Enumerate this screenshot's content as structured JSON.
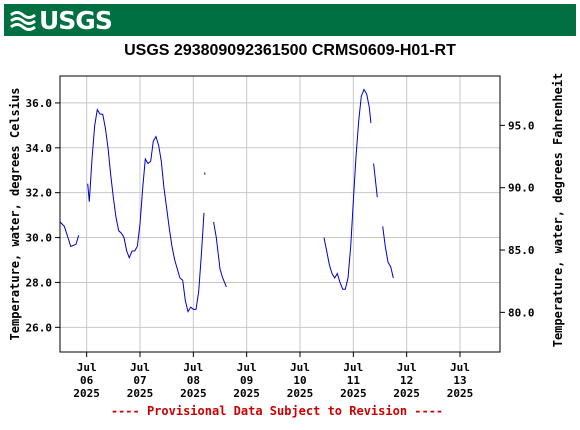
{
  "banner": {
    "logo_text": "USGS",
    "color": "#006f41"
  },
  "title": "USGS 293809092361500 CRMS0609-H01-RT",
  "footer": "---- Provisional Data Subject to Revision ----",
  "colors": {
    "line": "#0000cc",
    "footer": "#cc0000",
    "grid": "#c8c8c8"
  },
  "chart_data": {
    "type": "line",
    "title": "USGS 293809092361500 CRMS0609-H01-RT",
    "ylabel": "Temperature, water, degrees Celsius",
    "ylabel_right": "Temperature, water, degrees Fahrenheit",
    "xlim": [
      -0.5,
      7.75
    ],
    "ylim": [
      24.9,
      37.2
    ],
    "y_ticks": [
      26.0,
      28.0,
      30.0,
      32.0,
      34.0,
      36.0
    ],
    "y_tick_labels": [
      "26.0",
      "28.0",
      "30.0",
      "32.0",
      "34.0",
      "36.0"
    ],
    "y2_ticks": [
      80.0,
      85.0,
      90.0,
      95.0
    ],
    "y2_tick_labels": [
      "80.0",
      "85.0",
      "90.0",
      "95.0"
    ],
    "x_ticks": [
      0,
      1,
      2,
      3,
      4,
      5,
      6,
      7
    ],
    "x_tick_labels": [
      [
        "Jul",
        "06",
        "2025"
      ],
      [
        "Jul",
        "07",
        "2025"
      ],
      [
        "Jul",
        "08",
        "2025"
      ],
      [
        "Jul",
        "09",
        "2025"
      ],
      [
        "Jul",
        "10",
        "2025"
      ],
      [
        "Jul",
        "11",
        "2025"
      ],
      [
        "Jul",
        "12",
        "2025"
      ],
      [
        "Jul",
        "13",
        "2025"
      ]
    ],
    "grid": true,
    "series_segments": [
      [
        [
          -0.5,
          30.7
        ],
        [
          -0.42,
          30.5
        ],
        [
          -0.35,
          30.0
        ],
        [
          -0.3,
          29.6
        ],
        [
          -0.2,
          29.7
        ],
        [
          -0.15,
          30.1
        ]
      ],
      [
        [
          0.02,
          32.4
        ],
        [
          0.05,
          31.6
        ],
        [
          0.1,
          33.5
        ],
        [
          0.15,
          35.0
        ],
        [
          0.2,
          35.7
        ],
        [
          0.25,
          35.5
        ],
        [
          0.3,
          35.5
        ],
        [
          0.35,
          34.9
        ],
        [
          0.4,
          34.0
        ],
        [
          0.45,
          32.8
        ],
        [
          0.5,
          31.8
        ],
        [
          0.55,
          30.9
        ],
        [
          0.6,
          30.3
        ],
        [
          0.65,
          30.2
        ],
        [
          0.7,
          30.0
        ],
        [
          0.75,
          29.4
        ],
        [
          0.8,
          29.1
        ],
        [
          0.85,
          29.4
        ],
        [
          0.9,
          29.4
        ],
        [
          0.95,
          29.6
        ],
        [
          1.0,
          30.6
        ],
        [
          1.05,
          32.2
        ],
        [
          1.1,
          33.5
        ],
        [
          1.15,
          33.3
        ],
        [
          1.2,
          33.4
        ],
        [
          1.25,
          34.3
        ],
        [
          1.3,
          34.5
        ],
        [
          1.35,
          34.1
        ],
        [
          1.4,
          33.4
        ],
        [
          1.45,
          32.2
        ],
        [
          1.5,
          31.3
        ],
        [
          1.55,
          30.4
        ],
        [
          1.6,
          29.6
        ],
        [
          1.65,
          29.0
        ],
        [
          1.7,
          28.6
        ],
        [
          1.75,
          28.2
        ],
        [
          1.8,
          28.1
        ],
        [
          1.85,
          27.2
        ],
        [
          1.9,
          26.7
        ],
        [
          1.95,
          26.9
        ],
        [
          2.0,
          26.8
        ],
        [
          2.05,
          26.8
        ],
        [
          2.1,
          27.6
        ],
        [
          2.15,
          29.2
        ],
        [
          2.2,
          31.1
        ]
      ],
      [
        [
          2.21,
          32.9
        ],
        [
          2.22,
          32.8
        ]
      ],
      [
        [
          2.38,
          30.7
        ],
        [
          2.43,
          30.0
        ],
        [
          2.5,
          28.6
        ],
        [
          2.55,
          28.2
        ],
        [
          2.62,
          27.8
        ]
      ],
      [
        [
          4.45,
          30.0
        ],
        [
          4.5,
          29.4
        ],
        [
          4.55,
          28.8
        ],
        [
          4.6,
          28.4
        ],
        [
          4.65,
          28.2
        ],
        [
          4.7,
          28.4
        ],
        [
          4.75,
          28.0
        ],
        [
          4.8,
          27.7
        ],
        [
          4.85,
          27.7
        ],
        [
          4.9,
          28.2
        ],
        [
          4.95,
          29.6
        ],
        [
          5.0,
          31.6
        ],
        [
          5.05,
          33.6
        ],
        [
          5.1,
          35.2
        ],
        [
          5.15,
          36.3
        ],
        [
          5.2,
          36.6
        ],
        [
          5.25,
          36.4
        ],
        [
          5.3,
          35.8
        ],
        [
          5.33,
          35.1
        ]
      ],
      [
        [
          5.38,
          33.3
        ],
        [
          5.45,
          31.8
        ]
      ],
      [
        [
          5.55,
          30.5
        ],
        [
          5.6,
          29.6
        ],
        [
          5.65,
          28.9
        ],
        [
          5.7,
          28.7
        ],
        [
          5.75,
          28.2
        ]
      ]
    ]
  }
}
